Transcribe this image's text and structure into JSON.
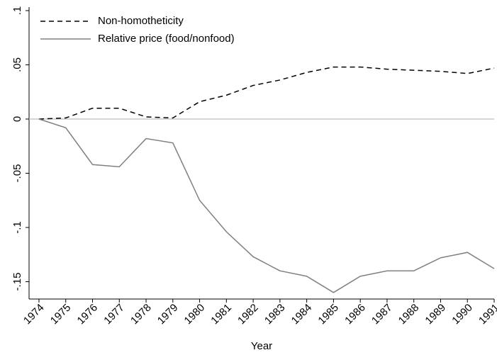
{
  "chart_data": {
    "type": "line",
    "x_label": "Year",
    "x": [
      1974,
      1975,
      1976,
      1977,
      1978,
      1979,
      1980,
      1981,
      1982,
      1983,
      1984,
      1985,
      1986,
      1987,
      1988,
      1989,
      1990,
      1991
    ],
    "series": [
      {
        "name": "Non-homotheticity",
        "color": "#000000",
        "dash": true,
        "values": [
          0,
          0.001,
          0.01,
          0.01,
          0.002,
          0.001,
          0.016,
          0.022,
          0.031,
          0.036,
          0.043,
          0.048,
          0.048,
          0.046,
          0.045,
          0.044,
          0.042,
          0.047
        ]
      },
      {
        "name": "Relative price (food/nonfood)",
        "color": "#808080",
        "dash": false,
        "values": [
          0,
          -0.008,
          -0.042,
          -0.044,
          -0.018,
          -0.022,
          -0.075,
          -0.104,
          -0.127,
          -0.14,
          -0.145,
          -0.16,
          -0.145,
          -0.14,
          -0.14,
          -0.128,
          -0.123,
          -0.138
        ]
      }
    ],
    "xlim": [
      1973.63,
      1991
    ],
    "xticks": [
      1974,
      1975,
      1976,
      1977,
      1978,
      1979,
      1980,
      1981,
      1982,
      1983,
      1984,
      1985,
      1986,
      1987,
      1988,
      1989,
      1990,
      1991
    ],
    "ylim": [
      -0.166,
      0.1
    ],
    "yticks": [
      {
        "value": 0.1,
        "label": ".1"
      },
      {
        "value": 0.05,
        "label": ".05"
      },
      0,
      {
        "value": -0.05,
        "label": "-.05"
      },
      {
        "value": -0.1,
        "label": "-.1"
      },
      {
        "value": -0.15,
        "label": "-.15"
      }
    ],
    "zero_line": true,
    "legend": "top-left"
  }
}
